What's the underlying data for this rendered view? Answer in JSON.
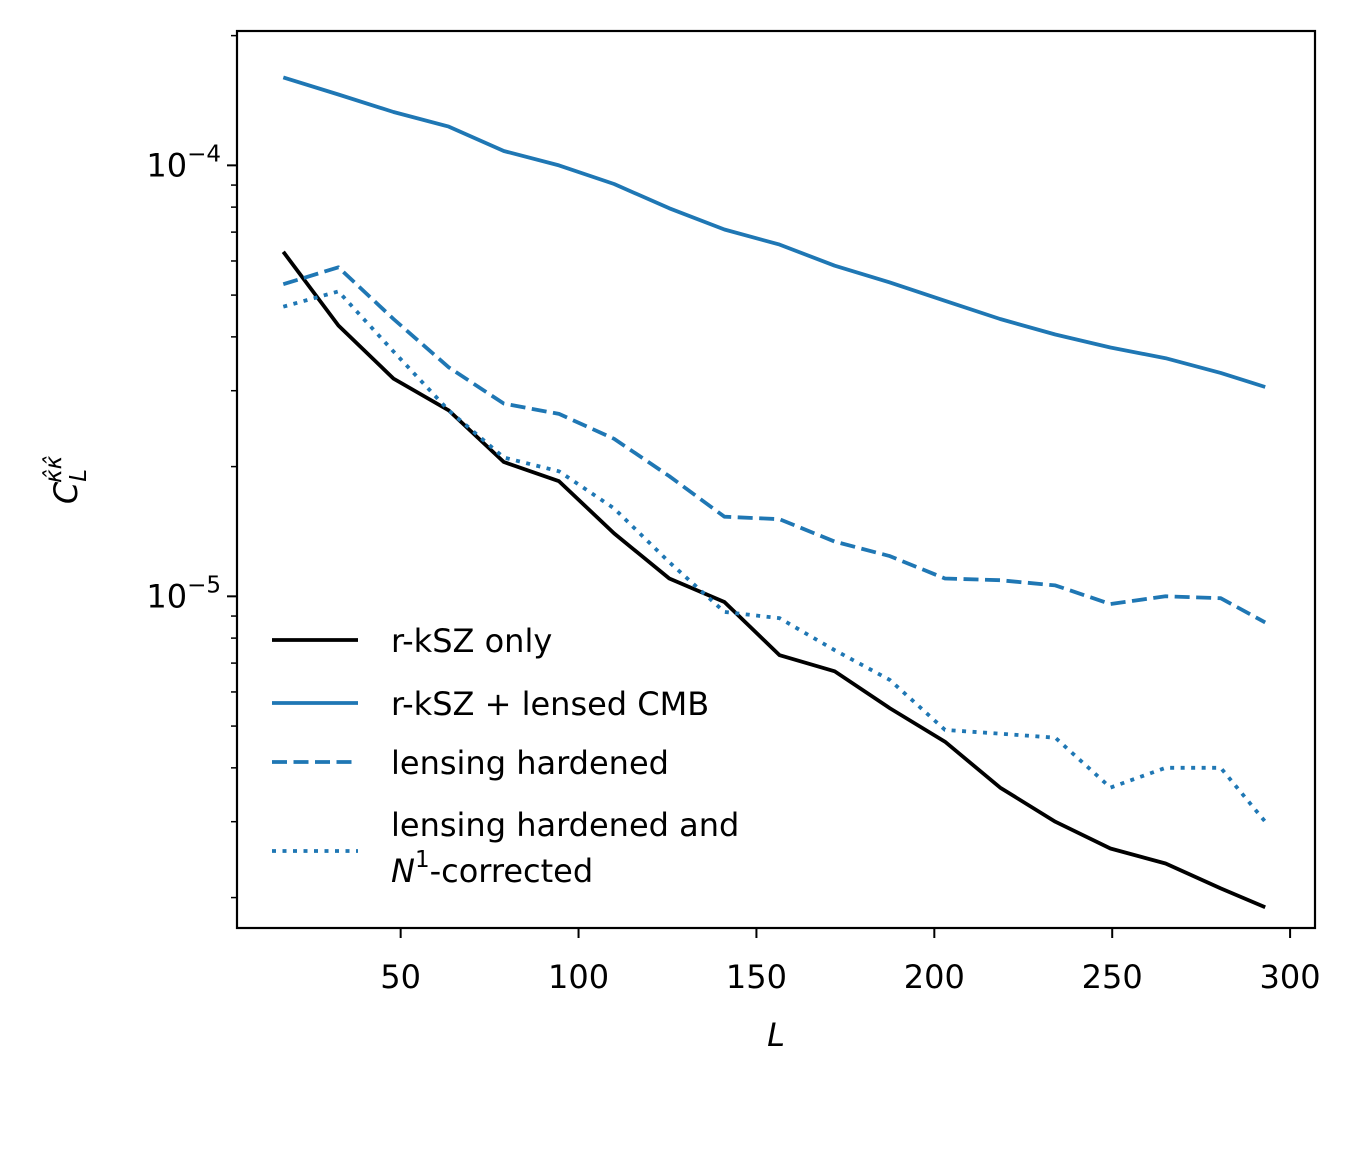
{
  "chart_data": {
    "type": "line",
    "xlabel": "L",
    "ylabel": "C_L^{κ̂κ̂}",
    "ylabel_parts": {
      "base": "C",
      "sub": "L",
      "sup": "κ̂κ̂"
    },
    "xlim": [
      4,
      307
    ],
    "ylim": [
      1.7e-06,
      0.000205
    ],
    "yscale": "log",
    "x_ticks": [
      50,
      100,
      150,
      200,
      250,
      300
    ],
    "x_tick_labels": [
      "50",
      "100",
      "150",
      "200",
      "250",
      "300"
    ],
    "y_ticks": [
      1e-05,
      0.0001
    ],
    "y_tick_labels": [
      {
        "base": "10",
        "exp": "−5"
      },
      {
        "base": "10",
        "exp": "−4"
      }
    ],
    "grid": false,
    "legend_position": "lower-left",
    "x": [
      17,
      32.5,
      48,
      63.5,
      79,
      94.5,
      110,
      125.5,
      141,
      156.5,
      172,
      187.5,
      203,
      218.5,
      234,
      249.5,
      265,
      280.5,
      293
    ],
    "series": [
      {
        "name": "r-kSZ only",
        "color": "#000000",
        "dash": "solid",
        "values": [
          6.3e-05,
          4.25e-05,
          3.2e-05,
          2.7e-05,
          2.05e-05,
          1.85e-05,
          1.4e-05,
          1.1e-05,
          9.7e-06,
          7.3e-06,
          6.7e-06,
          5.5e-06,
          4.6e-06,
          3.6e-06,
          3e-06,
          2.6e-06,
          2.4e-06,
          2.1e-06,
          1.9e-06
        ]
      },
      {
        "name": "r-kSZ + lensed CMB",
        "color": "#1f77b4",
        "dash": "solid",
        "values": [
          0.00016,
          0.000146,
          0.000133,
          0.000123,
          0.000108,
          0.0001,
          9.05e-05,
          7.95e-05,
          7.1e-05,
          6.55e-05,
          5.85e-05,
          5.35e-05,
          4.85e-05,
          4.4e-05,
          4.05e-05,
          3.78e-05,
          3.57e-05,
          3.3e-05,
          3.06e-05
        ]
      },
      {
        "name": "lensing hardened",
        "color": "#1f77b4",
        "dash": "dashed",
        "values": [
          5.3e-05,
          5.8e-05,
          4.4e-05,
          3.4e-05,
          2.8e-05,
          2.65e-05,
          2.32e-05,
          1.9e-05,
          1.53e-05,
          1.51e-05,
          1.34e-05,
          1.24e-05,
          1.1e-05,
          1.09e-05,
          1.06e-05,
          9.6e-06,
          1e-05,
          9.9e-06,
          8.7e-06
        ]
      },
      {
        "name_lines": [
          "lensing hardened and",
          "N^1-corrected"
        ],
        "name_line2_parts": {
          "base": "N",
          "sup": "1",
          "rest": "-corrected"
        },
        "color": "#1f77b4",
        "dash": "dotted",
        "values": [
          4.7e-05,
          5.1e-05,
          3.7e-05,
          2.7e-05,
          2.1e-05,
          1.95e-05,
          1.6e-05,
          1.2e-05,
          9.2e-06,
          8.9e-06,
          7.5e-06,
          6.4e-06,
          4.9e-06,
          4.8e-06,
          4.7e-06,
          3.6e-06,
          4e-06,
          4e-06,
          3e-06
        ]
      }
    ]
  }
}
